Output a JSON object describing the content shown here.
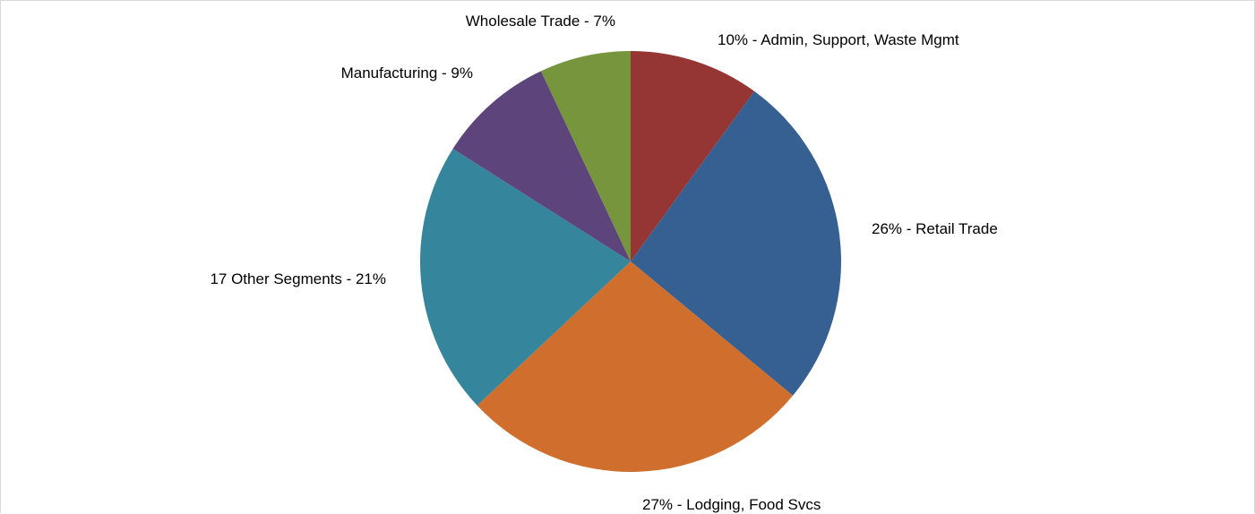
{
  "chart_data": {
    "type": "pie",
    "title": "",
    "legend": "none",
    "slices": [
      {
        "label": "10% - Admin, Support, Waste Mgmt",
        "value": 10,
        "color": "#963634"
      },
      {
        "label": "26% - Retail Trade",
        "value": 26,
        "color": "#366092"
      },
      {
        "label": "27% - Lodging, Food Svcs",
        "value": 27,
        "color": "#d06f2d"
      },
      {
        "label": "17 Other Segments - 21%",
        "value": 21,
        "color": "#35869c"
      },
      {
        "label": "Manufacturing - 9%",
        "value": 9,
        "color": "#5d457c"
      },
      {
        "label": "Wholesale Trade - 7%",
        "value": 7,
        "color": "#77953d"
      }
    ]
  }
}
